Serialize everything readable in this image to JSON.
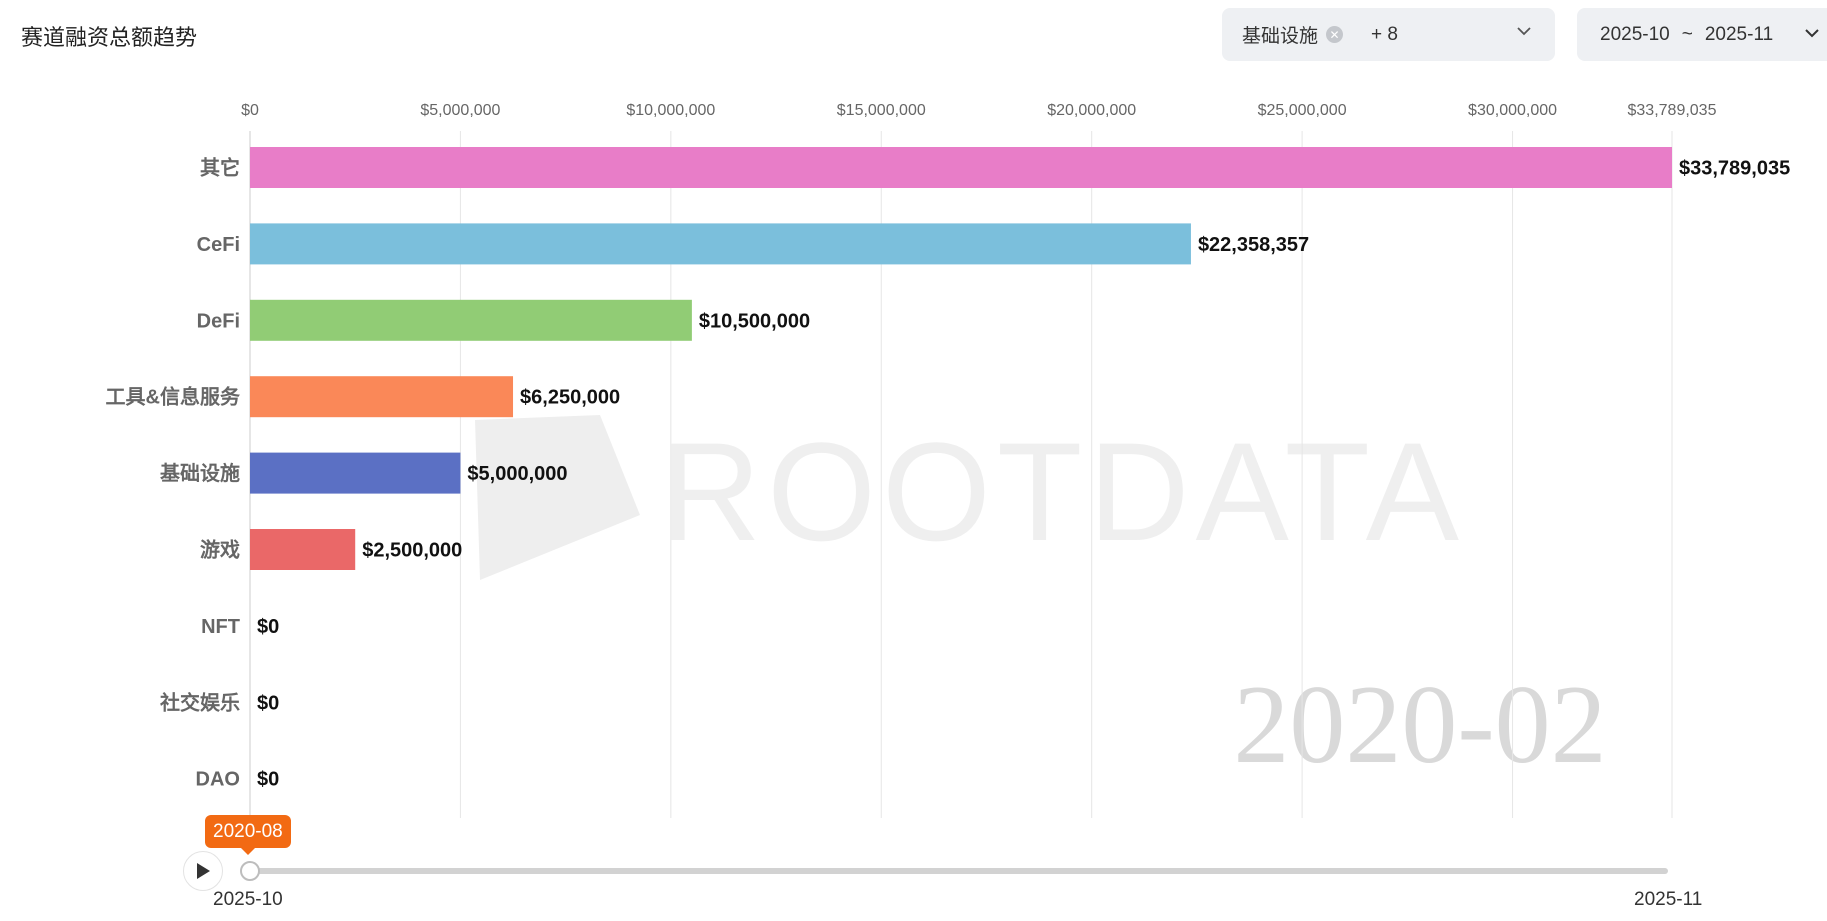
{
  "header": {
    "title": "赛道融资总额趋势",
    "filter": {
      "tag": "基础设施",
      "more": "+ 8"
    },
    "date_range": {
      "start": "2025-10",
      "separator": "~",
      "end": "2025-11"
    }
  },
  "chart_data": {
    "type": "bar",
    "orientation": "horizontal",
    "title": "",
    "xlabel": "",
    "ylabel": "",
    "xlim": [
      0,
      33789035
    ],
    "x_ticks": [
      "$0",
      "$5,000,000",
      "$10,000,000",
      "$15,000,000",
      "$20,000,000",
      "$25,000,000",
      "$30,000,000",
      "$33,789,035"
    ],
    "x_tick_values": [
      0,
      5000000,
      10000000,
      15000000,
      20000000,
      25000000,
      30000000,
      33789035
    ],
    "categories": [
      "其它",
      "CeFi",
      "DeFi",
      "工具&信息服务",
      "基础设施",
      "游戏",
      "NFT",
      "社交娱乐",
      "DAO"
    ],
    "values": [
      33789035,
      22358357,
      10500000,
      6250000,
      5000000,
      2500000,
      0,
      0,
      0
    ],
    "value_labels": [
      "$33,789,035",
      "$22,358,357",
      "$10,500,000",
      "$6,250,000",
      "$5,000,000",
      "$2,500,000",
      "$0",
      "$0",
      "$0"
    ],
    "colors": [
      "#e87dc8",
      "#7bbfdc",
      "#91cc75",
      "#fa8858",
      "#5b70c4",
      "#ea6868",
      "#fac858",
      "#73c0de",
      "#3ba272"
    ],
    "period_label": "2020-02",
    "watermark": "ROOTDATA",
    "grid": true,
    "legend": "none"
  },
  "timeline": {
    "current": "2020-08",
    "start": "2025-10",
    "end": "2025-11",
    "progress": 0
  }
}
